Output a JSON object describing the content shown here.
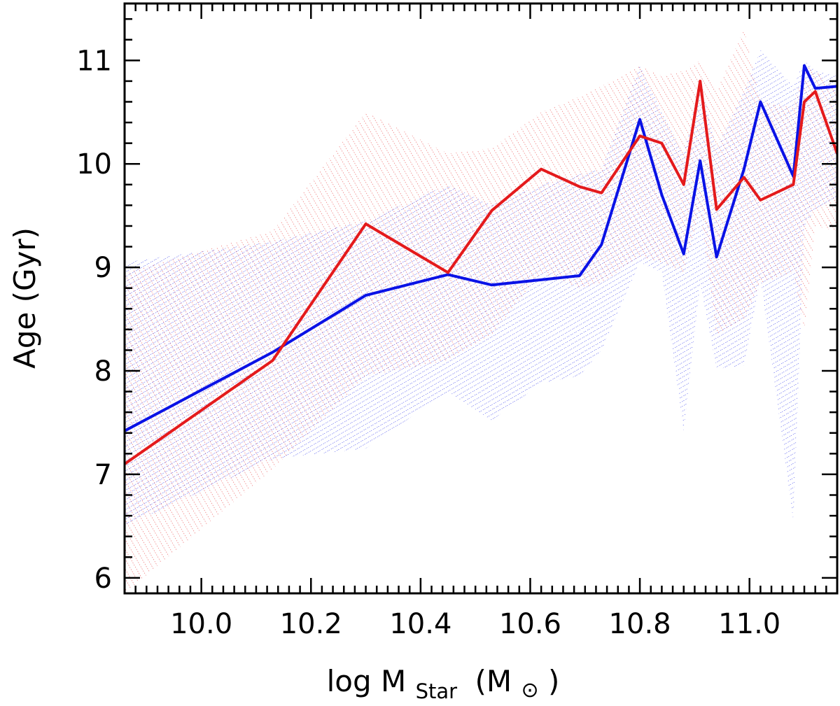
{
  "chart_data": {
    "type": "line",
    "title": "",
    "xlabel": {
      "main": "log M",
      "sub": "Star",
      "unit": "(M",
      "unit_symbol": "⊙",
      "unit_close": ")"
    },
    "ylabel": "Age (Gyr)",
    "xlim": [
      9.86,
      11.16
    ],
    "ylim": [
      5.85,
      11.55
    ],
    "xticks": [
      "10.0",
      "10.2",
      "10.4",
      "10.6",
      "10.8",
      "11.0"
    ],
    "xtick_values": [
      10.0,
      10.2,
      10.4,
      10.6,
      10.8,
      11.0
    ],
    "yticks": [
      "6",
      "7",
      "8",
      "9",
      "10",
      "11"
    ],
    "ytick_values": [
      6,
      7,
      8,
      9,
      10,
      11
    ],
    "series": [
      {
        "name": "red",
        "color": "#e41a1c",
        "x": [
          9.86,
          10.13,
          10.3,
          10.45,
          10.53,
          10.62,
          10.69,
          10.73,
          10.8,
          10.84,
          10.88,
          10.91,
          10.94,
          10.99,
          11.02,
          11.08,
          11.1,
          11.12,
          11.16
        ],
        "y": [
          7.1,
          8.1,
          9.42,
          8.95,
          9.55,
          9.95,
          9.78,
          9.72,
          10.27,
          10.2,
          9.8,
          10.8,
          9.56,
          9.87,
          9.65,
          9.8,
          10.6,
          10.7,
          10.1
        ],
        "band_upper": [
          8.95,
          9.35,
          10.5,
          10.1,
          10.15,
          10.5,
          10.65,
          10.75,
          10.95,
          10.85,
          10.9,
          11.0,
          10.7,
          11.3,
          10.6,
          10.55,
          10.95,
          10.9,
          10.7
        ],
        "band_lower": [
          5.85,
          7.05,
          7.95,
          8.1,
          8.35,
          8.95,
          8.8,
          8.85,
          9.1,
          9.05,
          8.95,
          9.55,
          8.35,
          8.5,
          8.85,
          8.95,
          8.4,
          9.4,
          9.35
        ]
      },
      {
        "name": "blue",
        "color": "#0a12e6",
        "x": [
          9.86,
          10.13,
          10.3,
          10.45,
          10.53,
          10.62,
          10.69,
          10.73,
          10.8,
          10.84,
          10.88,
          10.91,
          10.94,
          10.99,
          11.02,
          11.08,
          11.1,
          11.12,
          11.16
        ],
        "y": [
          7.42,
          8.18,
          8.73,
          8.93,
          8.83,
          8.88,
          8.92,
          9.22,
          10.43,
          9.7,
          9.13,
          10.03,
          9.1,
          9.95,
          10.6,
          9.88,
          10.95,
          10.73,
          10.75
        ],
        "band_upper": [
          9.05,
          9.25,
          9.45,
          9.8,
          9.6,
          9.8,
          9.9,
          9.95,
          10.95,
          10.5,
          10.1,
          10.8,
          10.15,
          10.7,
          11.1,
          10.75,
          11.0,
          10.9,
          10.85
        ],
        "band_lower": [
          6.5,
          7.15,
          7.25,
          7.8,
          7.52,
          7.88,
          7.95,
          8.2,
          9.05,
          8.95,
          7.42,
          8.85,
          8.02,
          8.05,
          8.9,
          6.55,
          9.4,
          9.55,
          9.65
        ]
      }
    ],
    "grid": false,
    "legend": "none"
  }
}
